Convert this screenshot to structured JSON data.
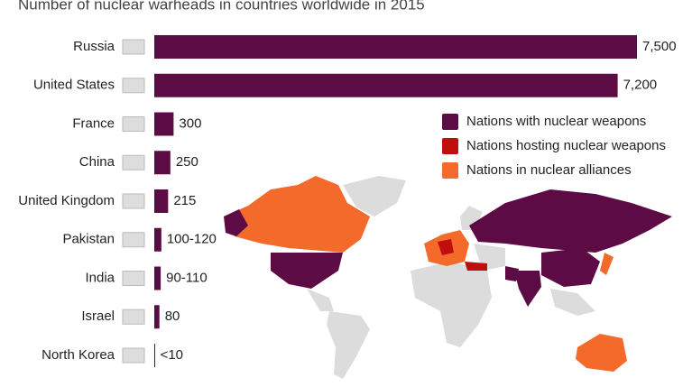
{
  "chart_data": {
    "type": "bar",
    "orientation": "horizontal",
    "title": "Number of nuclear warheads in countries worldwide in 2015",
    "categories": [
      "Russia",
      "United States",
      "France",
      "China",
      "United Kingdom",
      "Pakistan",
      "India",
      "Israel",
      "North Korea"
    ],
    "values": [
      7500,
      7200,
      300,
      250,
      215,
      110,
      100,
      80,
      8
    ],
    "value_labels": [
      "7,500",
      "7,200",
      "300",
      "250",
      "215",
      "100-120",
      "90-110",
      "80",
      "<10"
    ],
    "color": "#5c0b45",
    "legend": [
      {
        "name": "Nations with nuclear weapons",
        "color": "#5c0b45"
      },
      {
        "name": "Nations hosting nuclear weapons",
        "color": "#c00d0d"
      },
      {
        "name": "Nations in nuclear alliances",
        "color": "#f36a2b"
      }
    ]
  }
}
